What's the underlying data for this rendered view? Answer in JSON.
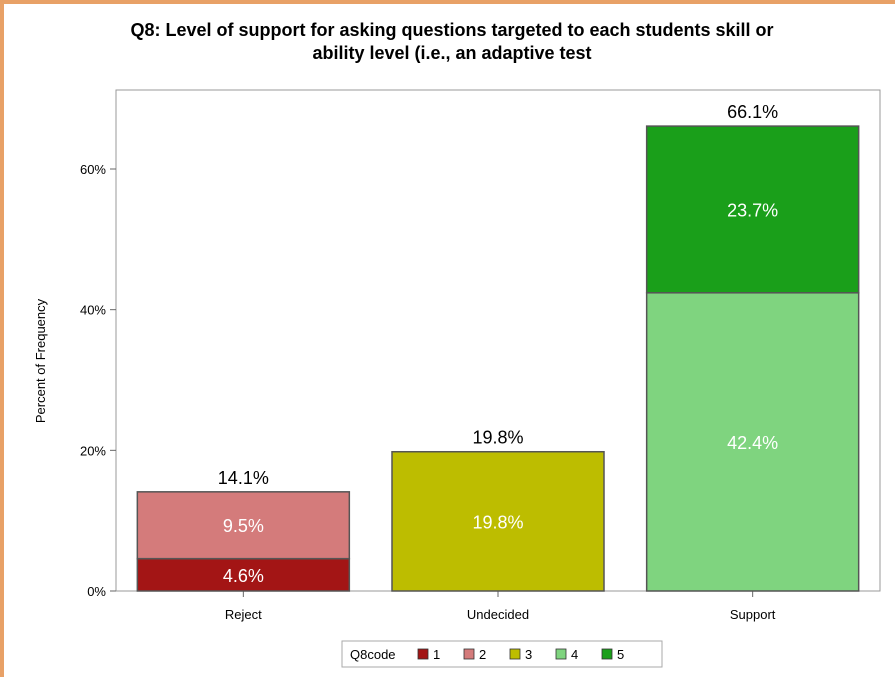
{
  "chart_data": {
    "type": "bar",
    "stacked": true,
    "title_line1": "Q8: Level of support for asking questions targeted to each students skill or",
    "title_line2": "ability level (i.e., an adaptive test",
    "ylabel": "Percent of Frequency",
    "xlabel": "",
    "ylim": [
      0,
      70
    ],
    "yticks": [
      {
        "value": 0,
        "label": "0%"
      },
      {
        "value": 20,
        "label": "20%"
      },
      {
        "value": 40,
        "label": "40%"
      },
      {
        "value": 60,
        "label": "60%"
      }
    ],
    "grid": false,
    "categories": [
      "Reject",
      "Undecided",
      "Support"
    ],
    "totals": [
      14.1,
      19.8,
      66.1
    ],
    "total_labels": [
      "14.1%",
      "19.8%",
      "66.1%"
    ],
    "series": [
      {
        "name": "1",
        "color": "#a31515",
        "values": [
          4.6,
          0,
          0
        ],
        "labels": [
          "4.6%",
          "",
          ""
        ]
      },
      {
        "name": "2",
        "color": "#d47b7b",
        "values": [
          9.5,
          0,
          0
        ],
        "labels": [
          "9.5%",
          "",
          ""
        ]
      },
      {
        "name": "3",
        "color": "#bdbd00",
        "values": [
          0,
          19.8,
          0
        ],
        "labels": [
          "",
          "19.8%",
          ""
        ]
      },
      {
        "name": "4",
        "color": "#7fd47f",
        "values": [
          0,
          0,
          42.4
        ],
        "labels": [
          "",
          "",
          "42.4%"
        ]
      },
      {
        "name": "5",
        "color": "#1a9f1a",
        "values": [
          0,
          0,
          23.7
        ],
        "labels": [
          "",
          "",
          "23.7%"
        ]
      }
    ],
    "legend": {
      "title": "Q8code",
      "placement": "bottom-center"
    }
  }
}
